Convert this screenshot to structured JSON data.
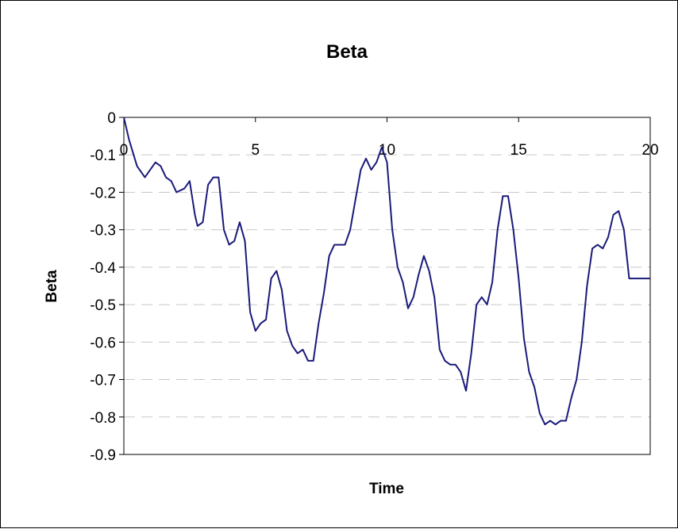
{
  "chart_data": {
    "type": "line",
    "title": "Beta",
    "xlabel": "Time",
    "ylabel": "Beta",
    "xlim": [
      0,
      20
    ],
    "ylim": [
      -0.9,
      0
    ],
    "x_ticks": [
      "0",
      "5",
      "10",
      "15",
      "20"
    ],
    "y_ticks": [
      "0",
      "-0.1",
      "-0.2",
      "-0.3",
      "-0.4",
      "-0.5",
      "-0.6",
      "-0.7",
      "-0.8",
      "-0.9"
    ],
    "x_axis_position": "top (at y = 0)",
    "grid": "horizontal dashed",
    "legend": "none",
    "line_color": "#1a1a7a",
    "series": [
      {
        "x": [
          0,
          0.2,
          0.5,
          0.8,
          1.0,
          1.2,
          1.4,
          1.6,
          1.8,
          2.0,
          2.3,
          2.5,
          2.7,
          2.8,
          3.0,
          3.2,
          3.4,
          3.6,
          3.8,
          4.0,
          4.2,
          4.4,
          4.6,
          4.8,
          5.0,
          5.2,
          5.4,
          5.6,
          5.8,
          6.0,
          6.2,
          6.4,
          6.6,
          6.8,
          7.0,
          7.2,
          7.4,
          7.6,
          7.8,
          8.0,
          8.2,
          8.4,
          8.6,
          8.8,
          9.0,
          9.2,
          9.4,
          9.6,
          9.8,
          10.0,
          10.2,
          10.4,
          10.6,
          10.8,
          11.0,
          11.2,
          11.4,
          11.6,
          11.8,
          12.0,
          12.2,
          12.4,
          12.6,
          12.8,
          13.0,
          13.2,
          13.4,
          13.6,
          13.8,
          14.0,
          14.2,
          14.4,
          14.6,
          14.8,
          15.0,
          15.2,
          15.4,
          15.6,
          15.8,
          16.0,
          16.2,
          16.4,
          16.6,
          16.8,
          17.0,
          17.2,
          17.4,
          17.6,
          17.8,
          18.0,
          18.2,
          18.4,
          18.6,
          18.8,
          19.0,
          19.2,
          19.4,
          19.6,
          19.8,
          20.0
        ],
        "y": [
          0,
          -0.06,
          -0.13,
          -0.16,
          -0.14,
          -0.12,
          -0.13,
          -0.16,
          -0.17,
          -0.2,
          -0.19,
          -0.17,
          -0.26,
          -0.29,
          -0.28,
          -0.18,
          -0.16,
          -0.16,
          -0.3,
          -0.34,
          -0.33,
          -0.28,
          -0.33,
          -0.52,
          -0.57,
          -0.55,
          -0.54,
          -0.43,
          -0.41,
          -0.46,
          -0.57,
          -0.61,
          -0.63,
          -0.62,
          -0.65,
          -0.65,
          -0.55,
          -0.47,
          -0.37,
          -0.34,
          -0.34,
          -0.34,
          -0.3,
          -0.22,
          -0.14,
          -0.11,
          -0.14,
          -0.12,
          -0.08,
          -0.12,
          -0.3,
          -0.4,
          -0.44,
          -0.51,
          -0.48,
          -0.42,
          -0.37,
          -0.41,
          -0.48,
          -0.62,
          -0.65,
          -0.66,
          -0.66,
          -0.68,
          -0.73,
          -0.63,
          -0.5,
          -0.48,
          -0.5,
          -0.44,
          -0.3,
          -0.21,
          -0.21,
          -0.3,
          -0.43,
          -0.59,
          -0.68,
          -0.72,
          -0.79,
          -0.82,
          -0.81,
          -0.82,
          -0.81,
          -0.81,
          -0.75,
          -0.7,
          -0.6,
          -0.45,
          -0.35,
          -0.34,
          -0.35,
          -0.32,
          -0.26,
          -0.25,
          -0.3,
          -0.43,
          -0.43,
          -0.43,
          -0.43,
          -0.43
        ]
      }
    ]
  }
}
